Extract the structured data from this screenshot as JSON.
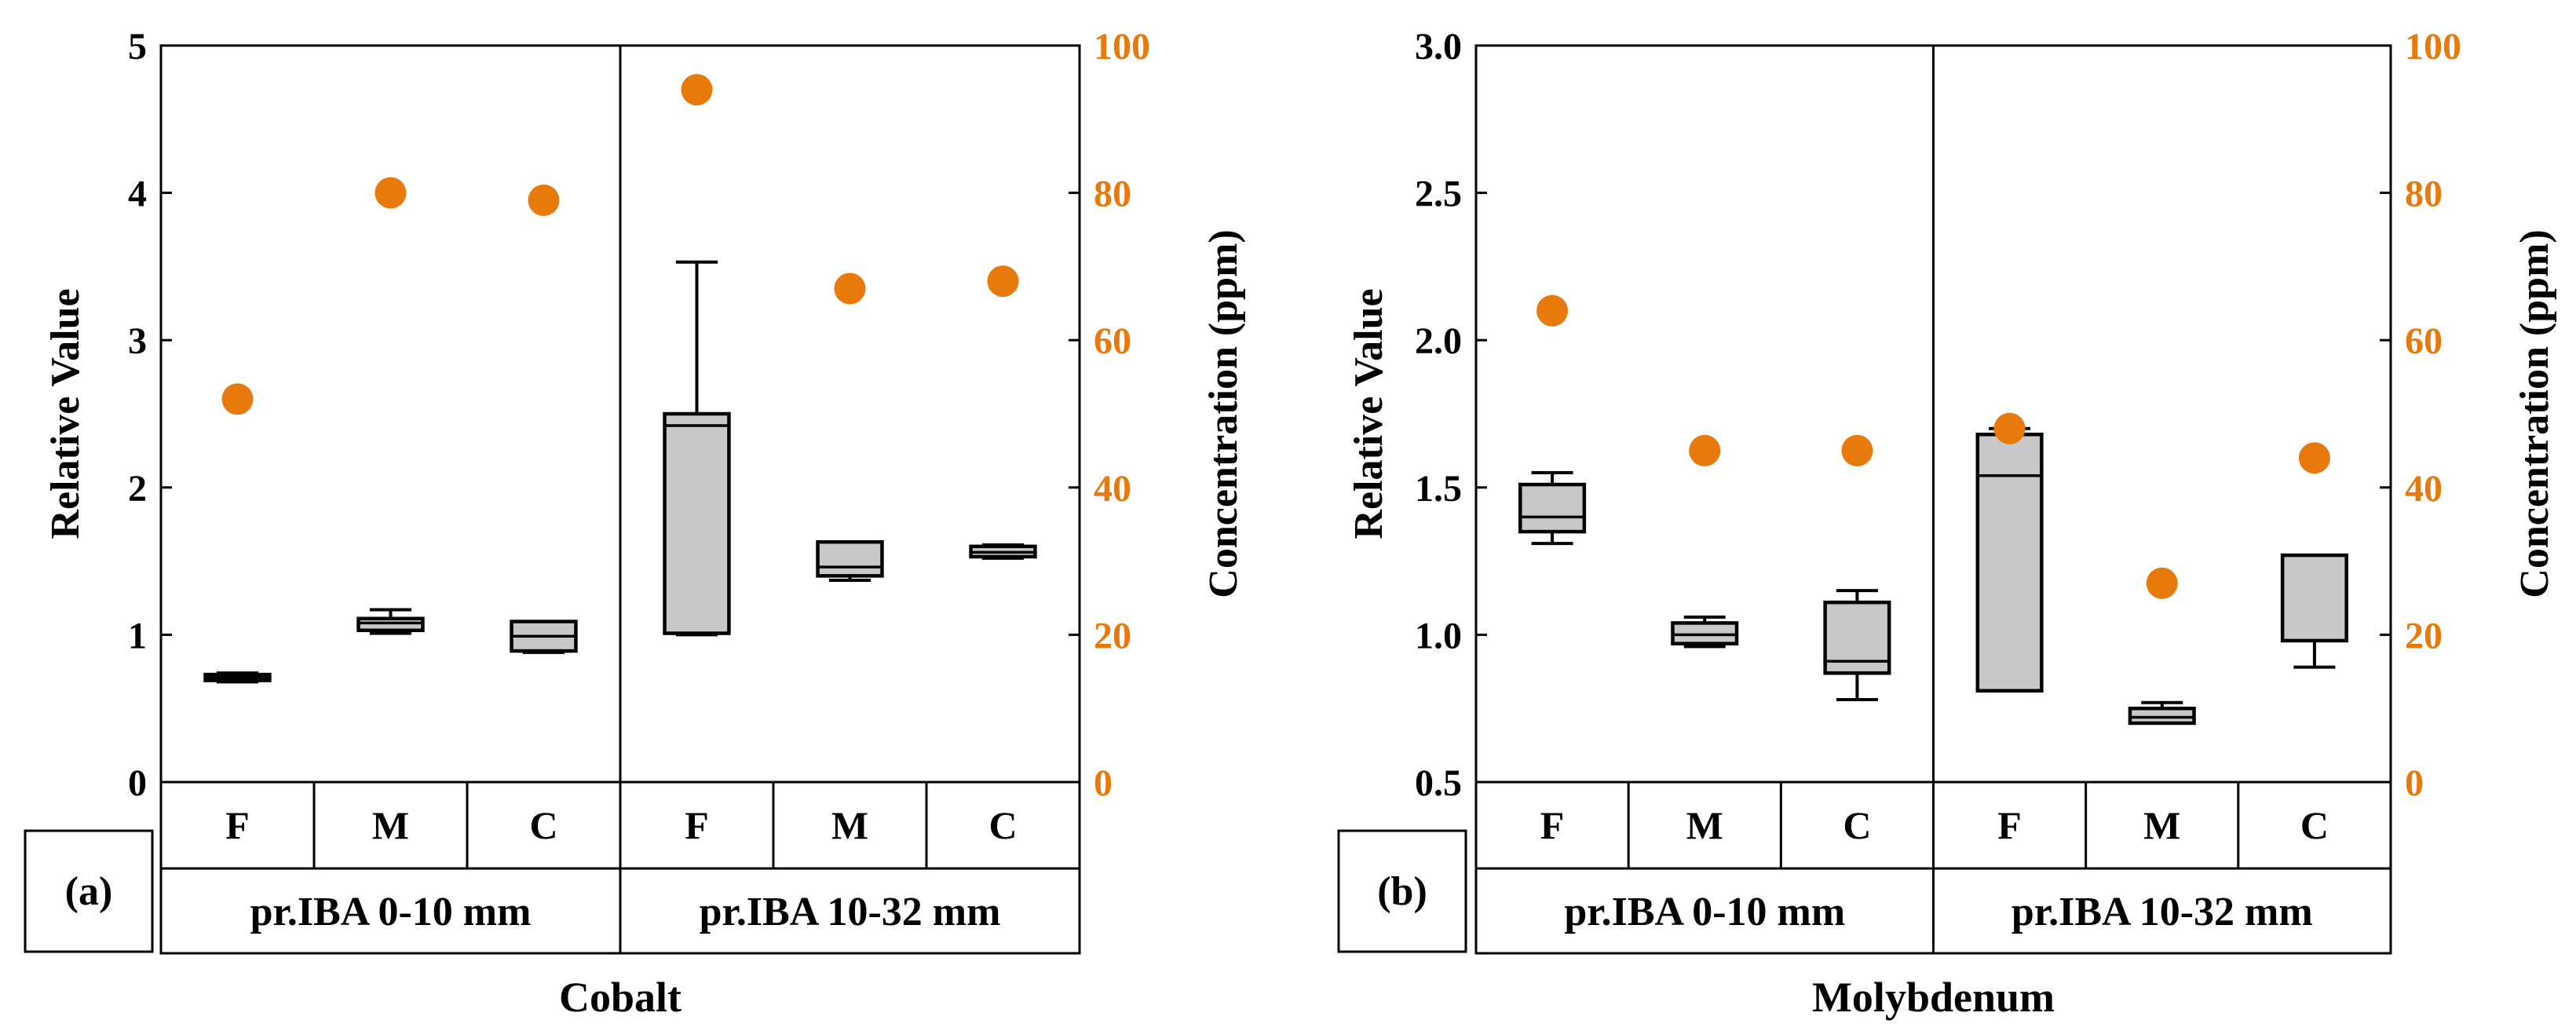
{
  "colors": {
    "box": "#C8C8C8",
    "concentration": "#E87A0C",
    "axis": "#000000"
  },
  "chart_data": [
    {
      "type": "box",
      "panel_label": "(a)",
      "title": "Cobalt",
      "ylabel": "Relative Value",
      "y2label": "Concentration (ppm)",
      "ylim": [
        0,
        5
      ],
      "yticks": [
        0,
        1,
        2,
        3,
        4,
        5
      ],
      "ytick_labels": [
        "0",
        "1",
        "2",
        "3",
        "4",
        "5"
      ],
      "y2lim": [
        0,
        100
      ],
      "y2ticks": [
        0,
        20,
        40,
        60,
        80,
        100
      ],
      "groups": [
        "pr.IBA 0-10 mm",
        "pr.IBA 10-32 mm"
      ],
      "categories": [
        "F",
        "M",
        "C",
        "F",
        "M",
        "C"
      ],
      "boxes": [
        {
          "min": 0.68,
          "q1": 0.69,
          "median": 0.71,
          "q3": 0.73,
          "max": 0.74
        },
        {
          "min": 1.01,
          "q1": 1.03,
          "median": 1.08,
          "q3": 1.11,
          "max": 1.17
        },
        {
          "min": 0.88,
          "q1": 0.89,
          "median": 0.99,
          "q3": 1.09,
          "max": 1.09
        },
        {
          "min": 1.0,
          "q1": 1.01,
          "median": 2.42,
          "q3": 2.5,
          "max": 3.53
        },
        {
          "min": 1.37,
          "q1": 1.4,
          "median": 1.46,
          "q3": 1.63,
          "max": 1.63
        },
        {
          "min": 1.52,
          "q1": 1.53,
          "median": 1.56,
          "q3": 1.6,
          "max": 1.61
        }
      ],
      "concentration_ppm": [
        52,
        80,
        79,
        94,
        67,
        68
      ]
    },
    {
      "type": "box",
      "panel_label": "(b)",
      "title": "Molybdenum",
      "ylabel": "Relative Value",
      "y2label": "Concentration (ppm)",
      "ylim": [
        0.5,
        3.0
      ],
      "yticks": [
        0.5,
        1.0,
        1.5,
        2.0,
        2.5,
        3.0
      ],
      "ytick_labels": [
        "0.5",
        "1.0",
        "1.5",
        "2.0",
        "2.5",
        "3.0"
      ],
      "y2lim": [
        0,
        100
      ],
      "y2ticks": [
        0,
        20,
        40,
        60,
        80,
        100
      ],
      "groups": [
        "pr.IBA 0-10 mm",
        "pr.IBA 10-32 mm"
      ],
      "categories": [
        "F",
        "M",
        "C",
        "F",
        "M",
        "C"
      ],
      "boxes": [
        {
          "min": 1.31,
          "q1": 1.35,
          "median": 1.4,
          "q3": 1.51,
          "max": 1.55
        },
        {
          "min": 0.96,
          "q1": 0.97,
          "median": 1.0,
          "q3": 1.04,
          "max": 1.06
        },
        {
          "min": 0.78,
          "q1": 0.87,
          "median": 0.91,
          "q3": 1.11,
          "max": 1.15
        },
        {
          "min": 0.81,
          "q1": 0.81,
          "median": 1.54,
          "q3": 1.68,
          "max": 1.7
        },
        {
          "min": 0.7,
          "q1": 0.7,
          "median": 0.72,
          "q3": 0.75,
          "max": 0.77
        },
        {
          "min": 0.89,
          "q1": 0.98,
          "median": 1.27,
          "q3": 1.27,
          "max": 1.27
        }
      ],
      "concentration_ppm": [
        64,
        45,
        45,
        48,
        27,
        44
      ]
    }
  ]
}
